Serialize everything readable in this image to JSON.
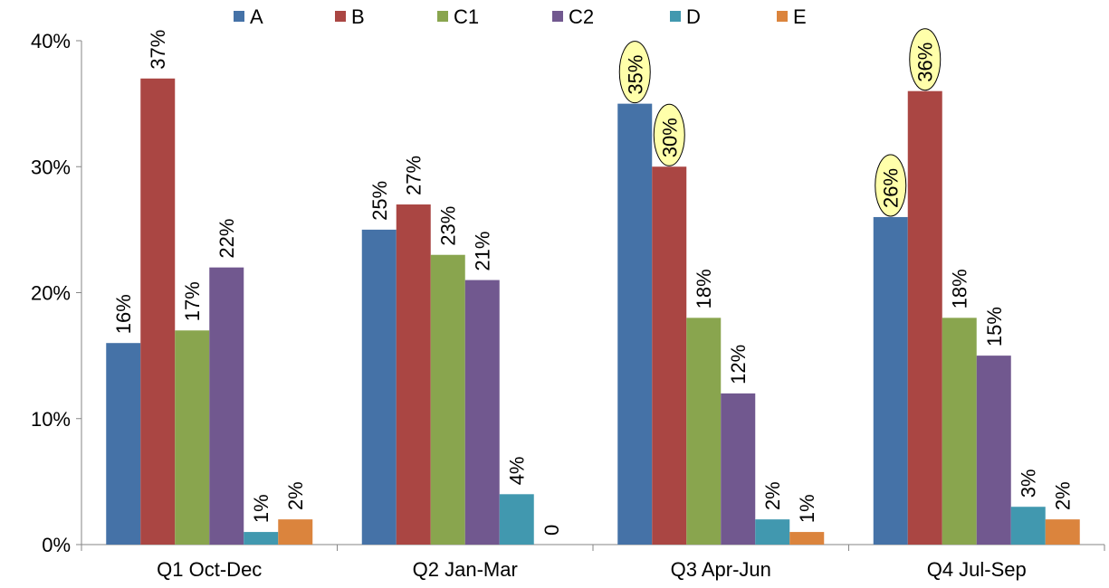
{
  "chart_data": {
    "type": "bar",
    "categories": [
      "Q1 Oct-Dec",
      "Q2 Jan-Mar",
      "Q3 Apr-Jun",
      "Q4 Jul-Sep"
    ],
    "series": [
      {
        "name": "A",
        "color": "#4572A7",
        "values": [
          16,
          25,
          35,
          26
        ],
        "labels": [
          "16%",
          "25%",
          "35%",
          "26%"
        ]
      },
      {
        "name": "B",
        "color": "#AA4643",
        "values": [
          37,
          27,
          30,
          36
        ],
        "labels": [
          "37%",
          "27%",
          "30%",
          "36%"
        ]
      },
      {
        "name": "C1",
        "color": "#89A54E",
        "values": [
          17,
          23,
          18,
          18
        ],
        "labels": [
          "17%",
          "23%",
          "18%",
          "18%"
        ]
      },
      {
        "name": "C2",
        "color": "#71588F",
        "values": [
          22,
          21,
          12,
          15
        ],
        "labels": [
          "22%",
          "21%",
          "12%",
          "15%"
        ]
      },
      {
        "name": "D",
        "color": "#4198AF",
        "values": [
          1,
          4,
          2,
          3
        ],
        "labels": [
          "1%",
          "4%",
          "2%",
          "3%"
        ]
      },
      {
        "name": "E",
        "color": "#DB843D",
        "values": [
          2,
          0,
          1,
          2
        ],
        "labels": [
          "2%",
          "0",
          "1%",
          "2%"
        ]
      }
    ],
    "highlighted": [
      {
        "series": "A",
        "category": "Q3 Apr-Jun"
      },
      {
        "series": "B",
        "category": "Q3 Apr-Jun"
      },
      {
        "series": "A",
        "category": "Q4 Jul-Sep"
      },
      {
        "series": "B",
        "category": "Q4 Jul-Sep"
      }
    ],
    "highlight_color": "#FFFFAA",
    "ylim": [
      0,
      40
    ],
    "yticks": [
      0,
      10,
      20,
      30,
      40
    ],
    "ytick_labels": [
      "0%",
      "10%",
      "20%",
      "30%",
      "40%"
    ],
    "legend_position": "top",
    "grid": false,
    "title": "",
    "xlabel": "",
    "ylabel": ""
  }
}
